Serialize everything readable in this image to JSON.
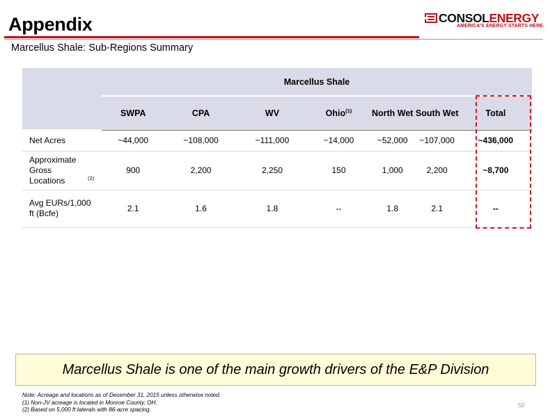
{
  "header": {
    "title": "Appendix",
    "subtitle": "Marcellus Shale: Sub-Regions Summary"
  },
  "logo": {
    "name_part1": "CONSOL",
    "name_part2": "ENERGY",
    "tagline": "AMERICA'S ENERGY STARTS HERE."
  },
  "table": {
    "group_header": "Marcellus Shale",
    "columns": [
      {
        "label": "SWPA",
        "sup": ""
      },
      {
        "label": "CPA",
        "sup": ""
      },
      {
        "label": "WV",
        "sup": ""
      },
      {
        "label": "Ohio",
        "sup": "(1)"
      },
      {
        "label": "North Wet",
        "sup": ""
      },
      {
        "label": "South Wet",
        "sup": ""
      },
      {
        "label": "Total",
        "sup": ""
      }
    ],
    "rows": [
      {
        "label": "Net Acres",
        "label_sup": "",
        "values": [
          "~44,000",
          "~108,000",
          "~111,000",
          "~14,000",
          "~52,000",
          "~107,000",
          "~436,000"
        ]
      },
      {
        "label": "Approximate Gross Locations",
        "label_sup": "(2)",
        "values": [
          "900",
          "2,200",
          "2,250",
          "150",
          "1,000",
          "2,200",
          "~8,700"
        ]
      },
      {
        "label": "Avg EURs/1,000 ft (Bcfe)",
        "label_sup": "",
        "values": [
          "2.1",
          "1.6",
          "1.8",
          "--",
          "1.8",
          "2.1",
          "--"
        ]
      }
    ]
  },
  "callout": "Marcellus Shale is one of the main growth drivers of the E&P Division",
  "notes": [
    "Note:  Acreage and locations as of December 31, 2015 unless otherwise noted.",
    "(1)  Non-JV acreage is located in Monroe County, OH.",
    "(2)  Based on 5,000 ft laterals with 86-acre spacing."
  ],
  "page_number": "50",
  "colors": {
    "accent_red": "#c0101a",
    "header_fill": "#d9dbe8",
    "callout_fill": "#fffcd8",
    "highlight_box": "#d11822"
  }
}
